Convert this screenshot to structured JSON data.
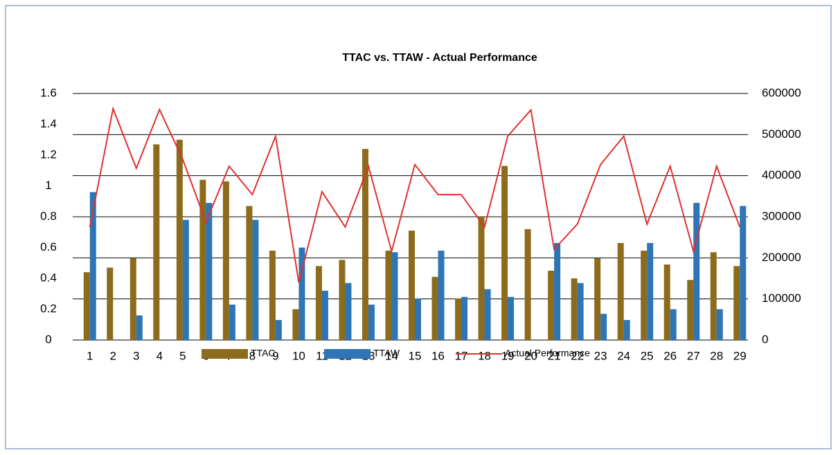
{
  "chart_data": {
    "type": "bar",
    "title": "TTAC vs. TTAW - Actual Performance",
    "categories": [
      "1",
      "2",
      "3",
      "4",
      "5",
      "6",
      "7",
      "8",
      "9",
      "10",
      "11",
      "12",
      "13",
      "14",
      "15",
      "16",
      "17",
      "18",
      "19",
      "20",
      "21",
      "22",
      "23",
      "24",
      "25",
      "26",
      "27",
      "28",
      "29"
    ],
    "series": [
      {
        "name": "TTAC",
        "type": "bar",
        "color": "#8c6b1c",
        "values": [
          0.44,
          0.47,
          0.53,
          1.27,
          1.3,
          1.04,
          1.03,
          0.87,
          0.58,
          0.2,
          0.48,
          0.52,
          1.24,
          0.58,
          0.71,
          0.41,
          0.27,
          0.8,
          1.13,
          0.72,
          0.45,
          0.4,
          0.53,
          0.63,
          0.58,
          0.49,
          0.39,
          0.57,
          0.48
        ]
      },
      {
        "name": "TTAW",
        "type": "bar",
        "color": "#2e75b6",
        "values": [
          0.96,
          0,
          0.16,
          0,
          0.78,
          0.89,
          0.23,
          0.78,
          0.13,
          0.6,
          0.32,
          0.37,
          0.23,
          0.57,
          0.27,
          0.58,
          0.28,
          0.33,
          0.28,
          0,
          0.63,
          0.37,
          0.17,
          0.13,
          0.63,
          0.2,
          0.89,
          0.2,
          0.87
        ]
      },
      {
        "name": "Actual Performance",
        "type": "line",
        "axis": "y2",
        "color": "#e03030",
        "values": [
          275000,
          563000,
          418000,
          561000,
          440000,
          287000,
          423000,
          354000,
          496000,
          140000,
          361000,
          275000,
          423000,
          216000,
          427000,
          354000,
          354000,
          275000,
          496000,
          560000,
          221000,
          282000,
          427000,
          496000,
          282000,
          423000,
          216000,
          423000,
          275000
        ]
      }
    ],
    "ylim": [
      0,
      1.6
    ],
    "yticks": [
      0,
      0.2,
      0.4,
      0.6,
      0.8,
      1,
      1.2,
      1.4,
      1.6
    ],
    "y2lim": [
      0,
      600000
    ],
    "y2ticks": [
      0,
      100000,
      200000,
      300000,
      400000,
      500000,
      600000
    ],
    "grid": true,
    "legend": "bottom"
  }
}
